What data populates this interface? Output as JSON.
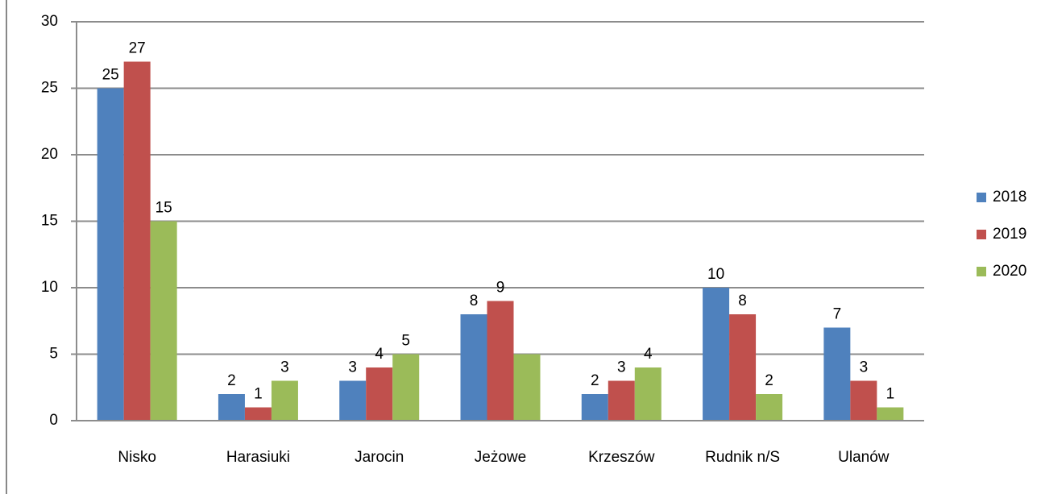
{
  "chart_data": {
    "type": "bar",
    "categories": [
      "Nisko",
      "Harasiuki",
      "Jarocin",
      "Jeżowe",
      "Krzeszów",
      "Rudnik n/S",
      "Ulanów"
    ],
    "series": [
      {
        "name": "2018",
        "color": "#4f81bd",
        "values": [
          25,
          2,
          3,
          8,
          2,
          10,
          7
        ]
      },
      {
        "name": "2019",
        "color": "#c0504d",
        "values": [
          27,
          1,
          4,
          9,
          3,
          8,
          3
        ]
      },
      {
        "name": "2020",
        "color": "#9bbb59",
        "values": [
          15,
          3,
          5,
          5,
          4,
          2,
          1
        ],
        "value_labels": [
          "15",
          "3",
          "5",
          null,
          "4",
          "2",
          "1"
        ]
      }
    ],
    "ylim": [
      0,
      30
    ],
    "yticks": [
      0,
      5,
      10,
      15,
      20,
      25,
      30
    ],
    "grid": true,
    "legend": "right"
  }
}
